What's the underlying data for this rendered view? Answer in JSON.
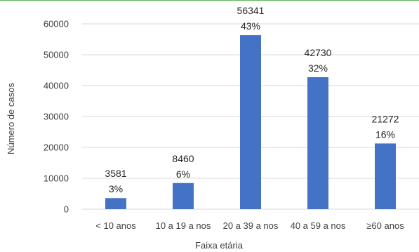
{
  "chart_data": {
    "type": "bar",
    "categories": [
      "< 10 anos",
      "10 a 19 a nos",
      "20 a 39 a nos",
      "40 a 59 a nos",
      "≥60 anos"
    ],
    "values": [
      3581,
      8460,
      56341,
      42730,
      21272
    ],
    "value_labels": [
      "3581",
      "8460",
      "56341",
      "42730",
      "21272"
    ],
    "percent_labels": [
      "3%",
      "6%",
      "43%",
      "32%",
      "16%"
    ],
    "xlabel": "Faixa etária",
    "ylabel": "Número de casos",
    "ylim": [
      0,
      60000
    ],
    "yticks": [
      0,
      10000,
      20000,
      30000,
      40000,
      50000,
      60000
    ],
    "ytick_labels": [
      "0",
      "10000",
      "20000",
      "30000",
      "40000",
      "50000",
      "60000"
    ],
    "grid": true,
    "bar_color": "#4472c4",
    "grid_color": "#d9d9d9"
  }
}
